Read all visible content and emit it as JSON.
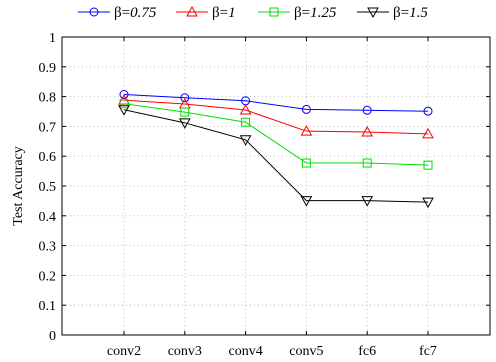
{
  "chart_data": {
    "type": "line",
    "title": "",
    "xlabel": "",
    "ylabel": "Test Accuracy",
    "categories": [
      "conv2",
      "conv3",
      "conv4",
      "conv5",
      "fc6",
      "fc7"
    ],
    "ylim": [
      0,
      1
    ],
    "yticks": [
      "0",
      "0.1",
      "0.2",
      "0.3",
      "0.4",
      "0.5",
      "0.6",
      "0.7",
      "0.8",
      "0.9",
      "1"
    ],
    "grid": true,
    "legend_position": "top",
    "series": [
      {
        "name_symbol": "β=",
        "name_value": "0.75",
        "color": "#0000ff",
        "marker": "circle",
        "values": [
          0.807,
          0.796,
          0.786,
          0.757,
          0.754,
          0.751
        ]
      },
      {
        "name_symbol": "β=",
        "name_value": "1",
        "color": "#ff0000",
        "marker": "triangle-up",
        "values": [
          0.788,
          0.775,
          0.755,
          0.684,
          0.681,
          0.675
        ]
      },
      {
        "name_symbol": "β=",
        "name_value": "1.25",
        "color": "#00dd00",
        "marker": "square",
        "values": [
          0.776,
          0.748,
          0.714,
          0.577,
          0.577,
          0.57
        ]
      },
      {
        "name_symbol": "β=",
        "name_value": "1.5",
        "color": "#000000",
        "marker": "triangle-down",
        "values": [
          0.756,
          0.712,
          0.655,
          0.451,
          0.451,
          0.446
        ]
      }
    ]
  }
}
